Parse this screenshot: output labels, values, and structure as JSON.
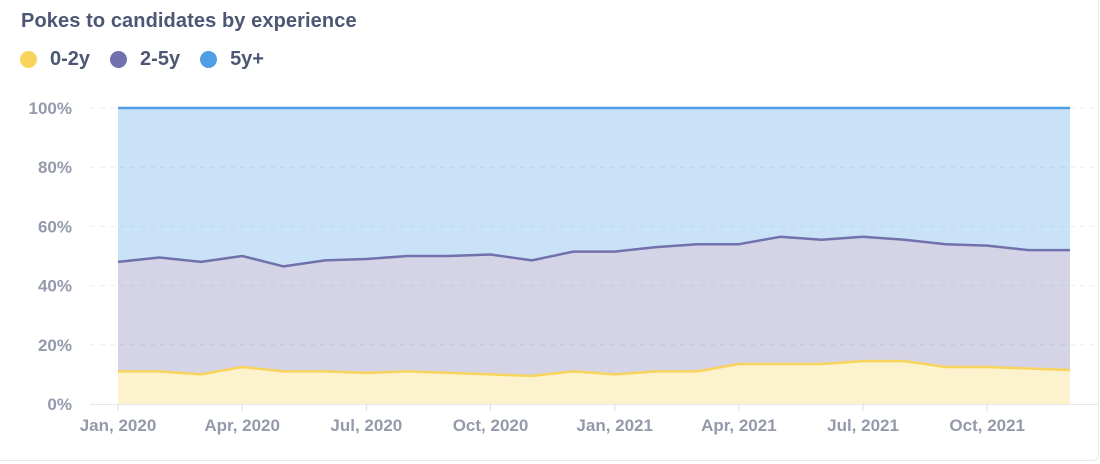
{
  "chart_data": {
    "type": "area",
    "stacked": "normalized",
    "title": "Pokes to candidates by experience",
    "x": [
      "2020-01",
      "2020-02",
      "2020-03",
      "2020-04",
      "2020-05",
      "2020-06",
      "2020-07",
      "2020-08",
      "2020-09",
      "2020-10",
      "2020-11",
      "2020-12",
      "2021-01",
      "2021-02",
      "2021-03",
      "2021-04",
      "2021-05",
      "2021-06",
      "2021-07",
      "2021-08",
      "2021-09",
      "2021-10",
      "2021-11",
      "2021-12"
    ],
    "x_tick_labels": [
      "Jan, 2020",
      "Apr, 2020",
      "Jul, 2020",
      "Oct, 2020",
      "Jan, 2021",
      "Apr, 2021",
      "Jul, 2021",
      "Oct, 2021"
    ],
    "y_tick_labels": [
      "0%",
      "20%",
      "40%",
      "60%",
      "80%",
      "100%"
    ],
    "ylim": [
      0,
      100
    ],
    "grid": true,
    "legend_position": "top-left",
    "series": [
      {
        "name": "0-2y",
        "color": "#F9D45C",
        "values": [
          11,
          11,
          10,
          12.5,
          11,
          11,
          10.5,
          11,
          10.5,
          10,
          9.5,
          11,
          10,
          11,
          11,
          13.5,
          13.5,
          13.5,
          14.5,
          14.5,
          12.5,
          12.5,
          12,
          11.5
        ]
      },
      {
        "name": "2-5y",
        "color": "#7172AD",
        "values": [
          37,
          38.5,
          38,
          37.5,
          35.5,
          37.5,
          38.5,
          39,
          39.5,
          40.5,
          39,
          40.5,
          41.5,
          42,
          43,
          40.5,
          43,
          42,
          42,
          41,
          41.5,
          41,
          40,
          40.5
        ]
      },
      {
        "name": "5y+",
        "color": "#509EE3",
        "values": [
          52,
          50.5,
          52,
          50,
          53.5,
          51.5,
          51,
          50,
          50,
          49.5,
          51.5,
          48.5,
          48.5,
          47,
          46,
          46,
          43.5,
          44.5,
          43.5,
          44.5,
          46,
          46.5,
          48,
          48
        ]
      }
    ]
  }
}
